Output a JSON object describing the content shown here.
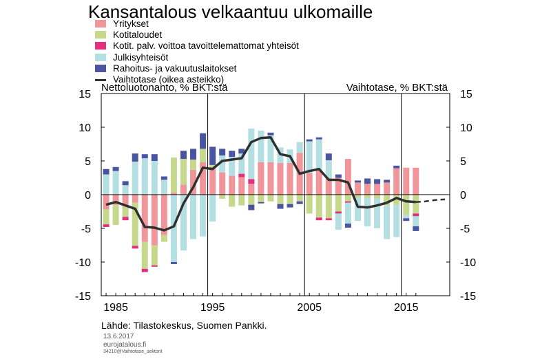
{
  "title": "Kansantalous velkaantuu ulkomaille",
  "legend": [
    {
      "label": "Yritykset",
      "color": "#f0959a",
      "type": "bar"
    },
    {
      "label": "Kotitaloudet",
      "color": "#c6d88c",
      "type": "bar"
    },
    {
      "label": "Kotit. palv. voittoa tavoittelemattomat yhteisöt",
      "color": "#e3307e",
      "type": "bar"
    },
    {
      "label": "Julkisyhteisöt",
      "color": "#b3dfe3",
      "type": "bar"
    },
    {
      "label": "Rahoitus- ja vakuutuslaitokset",
      "color": "#4a55a2",
      "type": "bar"
    },
    {
      "label": "Vaihtotase (oikea asteikko)",
      "color": "#303030",
      "type": "line"
    }
  ],
  "left_axis_label": "Nettoluotonanto, % BKT:stä",
  "right_axis_label": "Vaihtotase, % BKT:stä",
  "source": "Lähde: Tilastokeskus, Suomen Pankki.",
  "date": "13.6.2017",
  "site": "eurojatalous.fi",
  "code": "34210@Vaihtotase_sektorit",
  "chart_data": {
    "type": "bar",
    "stacked": true,
    "x": [
      1984,
      1985,
      1986,
      1987,
      1988,
      1989,
      1990,
      1991,
      1992,
      1993,
      1994,
      1995,
      1996,
      1997,
      1998,
      1999,
      2000,
      2001,
      2002,
      2003,
      2004,
      2005,
      2006,
      2007,
      2008,
      2009,
      2010,
      2011,
      2012,
      2013,
      2014,
      2015,
      2016
    ],
    "xticks": [
      1985,
      1995,
      2005,
      2015
    ],
    "ylim": [
      -15,
      15
    ],
    "yticks": [
      -15,
      -10,
      -5,
      0,
      5,
      10,
      15
    ],
    "grid": false,
    "series": [
      {
        "name": "Yritykset",
        "color": "#f0959a",
        "values": [
          -2.2,
          -1.5,
          -1.8,
          -1.2,
          -7.0,
          -7.5,
          -6.0,
          0.3,
          1.5,
          3.7,
          4.8,
          4.0,
          3.3,
          2.8,
          2.6,
          1.6,
          4.8,
          4.8,
          4.7,
          4.7,
          6.2,
          3.2,
          3.6,
          2.4,
          2.5,
          5.3,
          1.8,
          1.6,
          1.6,
          1.8,
          3.9,
          4.0,
          4.0
        ]
      },
      {
        "name": "Kotitaloudet",
        "color": "#c6d88c",
        "values": [
          -2.2,
          -3.0,
          -1.5,
          -6.4,
          -4.0,
          -3.0,
          -1.0,
          5.2,
          3.8,
          1.5,
          2.0,
          0.4,
          -0.6,
          -1.8,
          -1.6,
          -1.5,
          -1.1,
          -1.0,
          -1.4,
          -1.4,
          -1.0,
          -2.8,
          -3.4,
          -3.5,
          -2.5,
          -1.0,
          -0.4,
          -0.5,
          -0.6,
          -1.6,
          -1.5,
          -3.0,
          -2.8
        ]
      },
      {
        "name": "Kotit. palv. voittoa tavoittelemattomat yhteisöt",
        "color": "#e3307e",
        "values": [
          -0.4,
          0,
          -0.5,
          -0.4,
          -0.5,
          -0.2,
          0,
          0,
          0,
          0,
          0,
          0,
          0,
          0,
          0.5,
          0.7,
          0,
          0,
          0,
          0,
          0,
          0,
          -0.4,
          -0.3,
          -0.3,
          -0.2,
          0,
          0,
          0,
          0,
          0,
          0,
          -0.4
        ]
      },
      {
        "name": "Julkisyhteisöt",
        "color": "#b3dfe3",
        "values": [
          3.0,
          3.5,
          1.4,
          4.9,
          5.4,
          5.0,
          2.2,
          -10.0,
          -8.3,
          -6.6,
          -6.2,
          -4.0,
          2.5,
          2.8,
          3.0,
          7.5,
          4.7,
          4.0,
          2.3,
          2.0,
          1.6,
          4.7,
          4.6,
          2.7,
          -2.4,
          -3.1,
          -3.5,
          -4.2,
          -4.4,
          -5.0,
          -4.8,
          -0.5,
          -1.5
        ]
      },
      {
        "name": "Rahoitus- ja vakuutuslaitokset",
        "color": "#4a55a2",
        "values": [
          0.8,
          0.6,
          0.6,
          1.2,
          0.6,
          1.0,
          0.5,
          -0.3,
          1.2,
          1.6,
          2.3,
          2.7,
          1.0,
          0.9,
          0.7,
          -0.8,
          -0.2,
          0.4,
          -0.7,
          -0.5,
          -0.4,
          0.3,
          0.3,
          1.0,
          0.5,
          -0.6,
          0.3,
          0.8,
          0.7,
          0.4,
          0.4,
          -0.4,
          -0.7
        ]
      },
      {
        "name": "Vaihtotase (oikea asteikko)",
        "color": "#303030",
        "type": "line",
        "axis": "right",
        "values": [
          -1.5,
          -1.1,
          -1.6,
          -2.1,
          -4.8,
          -4.9,
          -5.3,
          -4.7,
          -1.3,
          1.1,
          4.0,
          3.8,
          5.0,
          5.2,
          5.4,
          7.8,
          8.4,
          8.5,
          6.0,
          5.7,
          3.1,
          3.5,
          3.8,
          2.2,
          2.2,
          1.8,
          -1.8,
          -1.9,
          -1.6,
          -1.2,
          -0.5,
          -1.0,
          -1.1
        ]
      },
      {
        "name": "",
        "color": "#303030",
        "type": "line",
        "dashed": true,
        "axis": "right",
        "x": [
          2016,
          2017,
          2018,
          2019
        ],
        "values": [
          -1.1,
          -1.0,
          -0.8,
          -0.7
        ]
      }
    ]
  }
}
